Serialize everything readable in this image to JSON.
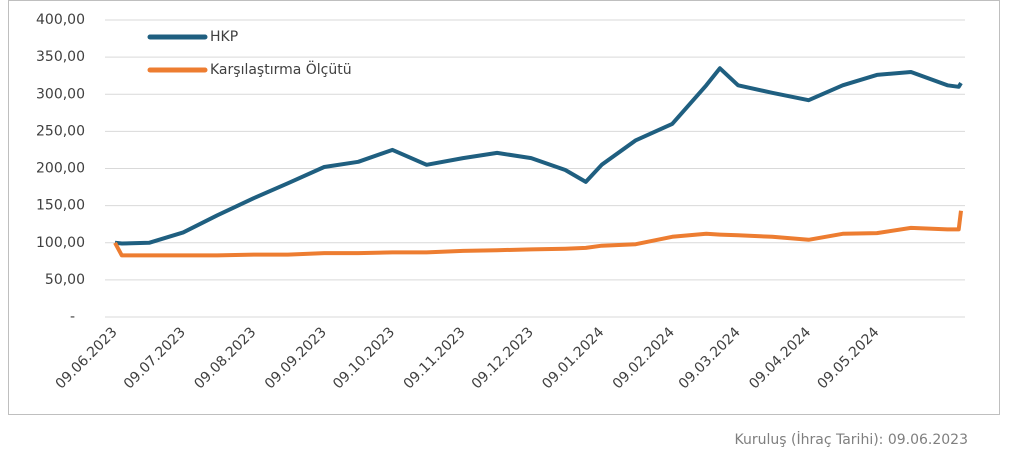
{
  "chart_data": {
    "type": "line",
    "x": [
      "09.06.2023",
      "12.06.2023",
      "24.06.2023",
      "09.07.2023",
      "24.07.2023",
      "09.08.2023",
      "24.08.2023",
      "09.09.2023",
      "24.09.2023",
      "09.10.2023",
      "24.10.2023",
      "09.11.2023",
      "24.11.2023",
      "09.12.2023",
      "24.12.2023",
      "02.01.2024",
      "09.01.2024",
      "24.01.2024",
      "09.02.2024",
      "24.02.2024",
      "01.03.2024",
      "09.03.2024",
      "24.03.2024",
      "09.04.2024",
      "24.04.2024",
      "09.05.2024",
      "24.05.2024",
      "09.06.2024",
      "14.06.2024",
      "15.06.2024"
    ],
    "series": [
      {
        "name": "HKP",
        "color": "#1f5f80",
        "values": [
          100,
          99,
          100,
          114,
          137,
          160,
          180,
          202,
          209,
          225,
          205,
          214,
          221,
          214,
          198,
          182,
          205,
          238,
          260,
          312,
          335,
          312,
          302,
          292,
          312,
          326,
          330,
          312,
          310,
          315
        ]
      },
      {
        "name": "Karşılaştırma Ölçütü",
        "color": "#ed7d31",
        "values": [
          100,
          83,
          83,
          83,
          83,
          84,
          84,
          86,
          86,
          87,
          87,
          89,
          90,
          91,
          92,
          93,
          96,
          98,
          108,
          112,
          111,
          110,
          108,
          104,
          112,
          113,
          120,
          118,
          118,
          143
        ]
      }
    ],
    "xlim": [
      "09.06.2023",
      "15.06.2024"
    ],
    "xticks": [
      "09.06.2023",
      "09.07.2023",
      "09.08.2023",
      "09.09.2023",
      "09.10.2023",
      "09.11.2023",
      "09.12.2023",
      "09.01.2024",
      "09.02.2024",
      "09.03.2024",
      "09.04.2024",
      "09.05.2024"
    ],
    "ylim": [
      0,
      400
    ],
    "yticks": [
      {
        "value": 0,
        "label": "-"
      },
      {
        "value": 50,
        "label": "50,00"
      },
      {
        "value": 100,
        "label": "100,00"
      },
      {
        "value": 150,
        "label": "150,00"
      },
      {
        "value": 200,
        "label": "200,00"
      },
      {
        "value": 250,
        "label": "250,00"
      },
      {
        "value": 300,
        "label": "300,00"
      },
      {
        "value": 350,
        "label": "350,00"
      },
      {
        "value": 400,
        "label": "400,00"
      }
    ],
    "grid": true,
    "legend": "top-left",
    "note": "Kuruluş (İhraç Tarihi): 09.06.2023"
  }
}
